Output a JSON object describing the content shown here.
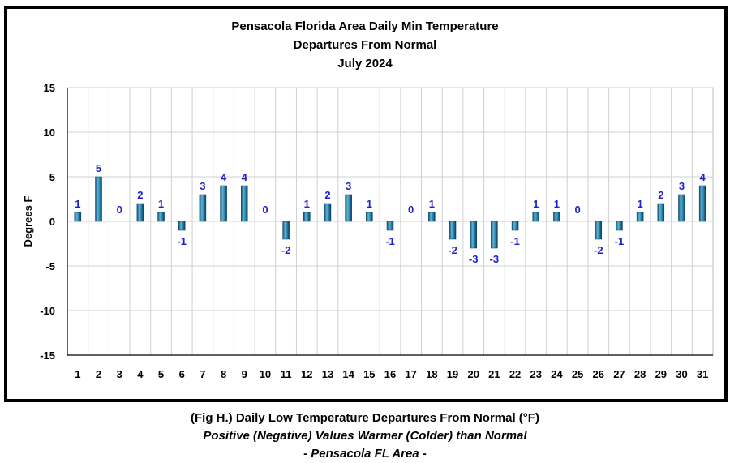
{
  "chart_data": {
    "type": "bar",
    "title_lines": [
      "Pensacola Florida Area Daily Min Temperature",
      "Departures From Normal",
      "July 2024"
    ],
    "xlabel": "",
    "ylabel": "Degrees F",
    "ylim": [
      -15,
      15
    ],
    "yticks": [
      15,
      10,
      5,
      0,
      -5,
      -10,
      -15
    ],
    "grid": true,
    "categories": [
      "1",
      "2",
      "3",
      "4",
      "5",
      "6",
      "7",
      "8",
      "9",
      "10",
      "11",
      "12",
      "13",
      "14",
      "15",
      "16",
      "17",
      "18",
      "19",
      "20",
      "21",
      "22",
      "23",
      "24",
      "25",
      "26",
      "27",
      "28",
      "29",
      "30",
      "31"
    ],
    "values": [
      1,
      5,
      0,
      2,
      1,
      -1,
      3,
      4,
      4,
      0,
      -2,
      1,
      2,
      3,
      1,
      -1,
      0,
      1,
      -2,
      -3,
      -3,
      -1,
      1,
      1,
      0,
      -2,
      -1,
      1,
      2,
      3,
      4
    ],
    "data_labels": true,
    "bar_color": "#2b7fa8"
  },
  "caption": {
    "line1": "(Fig H.) Daily Low Temperature Departures From Normal (°F)",
    "line2": "Positive (Negative) Values Warmer (Colder) than Normal",
    "line3": "- Pensacola FL Area -"
  }
}
